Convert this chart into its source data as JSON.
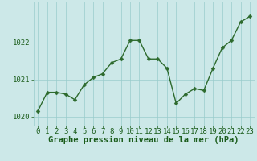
{
  "x": [
    0,
    1,
    2,
    3,
    4,
    5,
    6,
    7,
    8,
    9,
    10,
    11,
    12,
    13,
    14,
    15,
    16,
    17,
    18,
    19,
    20,
    21,
    22,
    23
  ],
  "y": [
    1020.15,
    1020.65,
    1020.65,
    1020.6,
    1020.45,
    1020.85,
    1021.05,
    1021.15,
    1021.45,
    1021.55,
    1022.05,
    1022.05,
    1021.55,
    1021.55,
    1021.3,
    1020.35,
    1020.6,
    1020.75,
    1020.7,
    1021.3,
    1021.85,
    1022.05,
    1022.55,
    1022.7
  ],
  "line_color": "#2d6a2d",
  "marker_color": "#2d6a2d",
  "bg_color": "#cce8e8",
  "grid_color": "#99cccc",
  "xlabel": "Graphe pression niveau de la mer (hPa)",
  "xlabel_color": "#1a5c1a",
  "tick_color": "#1a5c1a",
  "ylim": [
    1019.75,
    1023.1
  ],
  "yticks": [
    1020,
    1021,
    1022
  ],
  "xlim": [
    -0.5,
    23.5
  ],
  "xticks": [
    0,
    1,
    2,
    3,
    4,
    5,
    6,
    7,
    8,
    9,
    10,
    11,
    12,
    13,
    14,
    15,
    16,
    17,
    18,
    19,
    20,
    21,
    22,
    23
  ],
  "marker_size": 2.5,
  "line_width": 1.0,
  "xlabel_fontsize": 7.5,
  "tick_fontsize": 6.5,
  "xlabel_fontweight": "bold"
}
